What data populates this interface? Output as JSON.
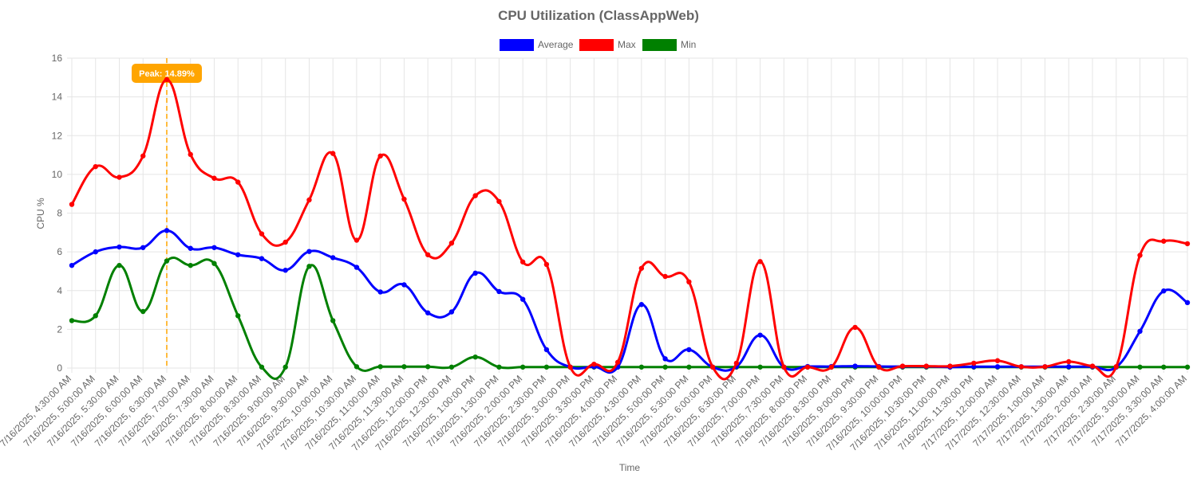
{
  "chart_data": {
    "type": "line",
    "title": "CPU Utilization (ClassAppWeb)",
    "xlabel": "Time",
    "ylabel": "CPU %",
    "ylim": [
      0,
      16
    ],
    "y_ticks": [
      "0",
      "2",
      "4",
      "6",
      "8",
      "10",
      "12",
      "14",
      "16"
    ],
    "grid": true,
    "legend_position": "top-center",
    "categories": [
      "7/16/2025, 4:30:00 AM",
      "7/16/2025, 5:00:00 AM",
      "7/16/2025, 5:30:00 AM",
      "7/16/2025, 6:00:00 AM",
      "7/16/2025, 6:30:00 AM",
      "7/16/2025, 7:00:00 AM",
      "7/16/2025, 7:30:00 AM",
      "7/16/2025, 8:00:00 AM",
      "7/16/2025, 8:30:00 AM",
      "7/16/2025, 9:00:00 AM",
      "7/16/2025, 9:30:00 AM",
      "7/16/2025, 10:00:00 AM",
      "7/16/2025, 10:30:00 AM",
      "7/16/2025, 11:00:00 AM",
      "7/16/2025, 11:30:00 AM",
      "7/16/2025, 12:00:00 PM",
      "7/16/2025, 12:30:00 PM",
      "7/16/2025, 1:00:00 PM",
      "7/16/2025, 1:30:00 PM",
      "7/16/2025, 2:00:00 PM",
      "7/16/2025, 2:30:00 PM",
      "7/16/2025, 3:00:00 PM",
      "7/16/2025, 3:30:00 PM",
      "7/16/2025, 4:00:00 PM",
      "7/16/2025, 4:30:00 PM",
      "7/16/2025, 5:00:00 PM",
      "7/16/2025, 5:30:00 PM",
      "7/16/2025, 6:00:00 PM",
      "7/16/2025, 6:30:00 PM",
      "7/16/2025, 7:00:00 PM",
      "7/16/2025, 7:30:00 PM",
      "7/16/2025, 8:00:00 PM",
      "7/16/2025, 8:30:00 PM",
      "7/16/2025, 9:00:00 PM",
      "7/16/2025, 9:30:00 PM",
      "7/16/2025, 10:00:00 PM",
      "7/16/2025, 10:30:00 PM",
      "7/16/2025, 11:00:00 PM",
      "7/16/2025, 11:30:00 PM",
      "7/17/2025, 12:00:00 AM",
      "7/17/2025, 12:30:00 AM",
      "7/17/2025, 1:00:00 AM",
      "7/17/2025, 1:30:00 AM",
      "7/17/2025, 2:00:00 AM",
      "7/17/2025, 2:30:00 AM",
      "7/17/2025, 3:00:00 AM",
      "7/17/2025, 3:30:00 AM",
      "7/17/2025, 4:00:00 AM"
    ],
    "series": [
      {
        "name": "Average",
        "color": "#0000ff",
        "values": [
          5.3,
          6.0,
          6.25,
          6.22,
          7.1,
          6.18,
          6.22,
          5.85,
          5.65,
          5.05,
          6.02,
          5.7,
          5.2,
          3.93,
          4.3,
          2.85,
          2.9,
          4.9,
          3.95,
          3.55,
          0.95,
          0.05,
          0.07,
          0.05,
          3.28,
          0.48,
          0.95,
          0.05,
          0.07,
          1.7,
          0.05,
          0.08,
          0.08,
          0.1,
          0.08,
          0.08,
          0.08,
          0.05,
          0.07,
          0.07,
          0.07,
          0.07,
          0.07,
          0.07,
          0.05,
          1.9,
          3.98,
          3.38
        ]
      },
      {
        "name": "Max",
        "color": "#ff0000",
        "values": [
          8.45,
          10.4,
          9.85,
          10.95,
          14.89,
          11.03,
          9.8,
          9.6,
          6.93,
          6.5,
          8.68,
          11.08,
          6.6,
          10.95,
          8.72,
          5.85,
          6.45,
          8.9,
          8.6,
          5.48,
          5.35,
          0.05,
          0.2,
          0.3,
          5.15,
          4.73,
          4.45,
          0.05,
          0.25,
          5.5,
          0.05,
          0.05,
          0.05,
          2.1,
          0.05,
          0.1,
          0.1,
          0.1,
          0.25,
          0.38,
          0.07,
          0.07,
          0.33,
          0.1,
          0.07,
          5.82,
          6.55,
          6.42
        ]
      },
      {
        "name": "Min",
        "color": "#008000",
        "values": [
          2.45,
          2.7,
          5.3,
          2.92,
          5.53,
          5.3,
          5.4,
          2.7,
          0.05,
          0.05,
          5.25,
          2.45,
          0.07,
          0.07,
          0.07,
          0.07,
          0.05,
          0.57,
          0.05,
          0.05,
          0.05,
          0.05,
          0.05,
          0.05,
          0.05,
          0.05,
          0.05,
          0.05,
          0.05,
          0.05,
          0.05,
          0.05,
          0.05,
          0.05,
          0.05,
          0.05,
          0.05,
          0.05,
          0.05,
          0.05,
          0.05,
          0.05,
          0.05,
          0.05,
          0.05,
          0.05,
          0.05,
          0.05
        ]
      }
    ],
    "annotations": [
      {
        "text": "Peak: 14.89%",
        "x_index": 4,
        "value": 14.89,
        "color": "#ffa500"
      }
    ]
  }
}
